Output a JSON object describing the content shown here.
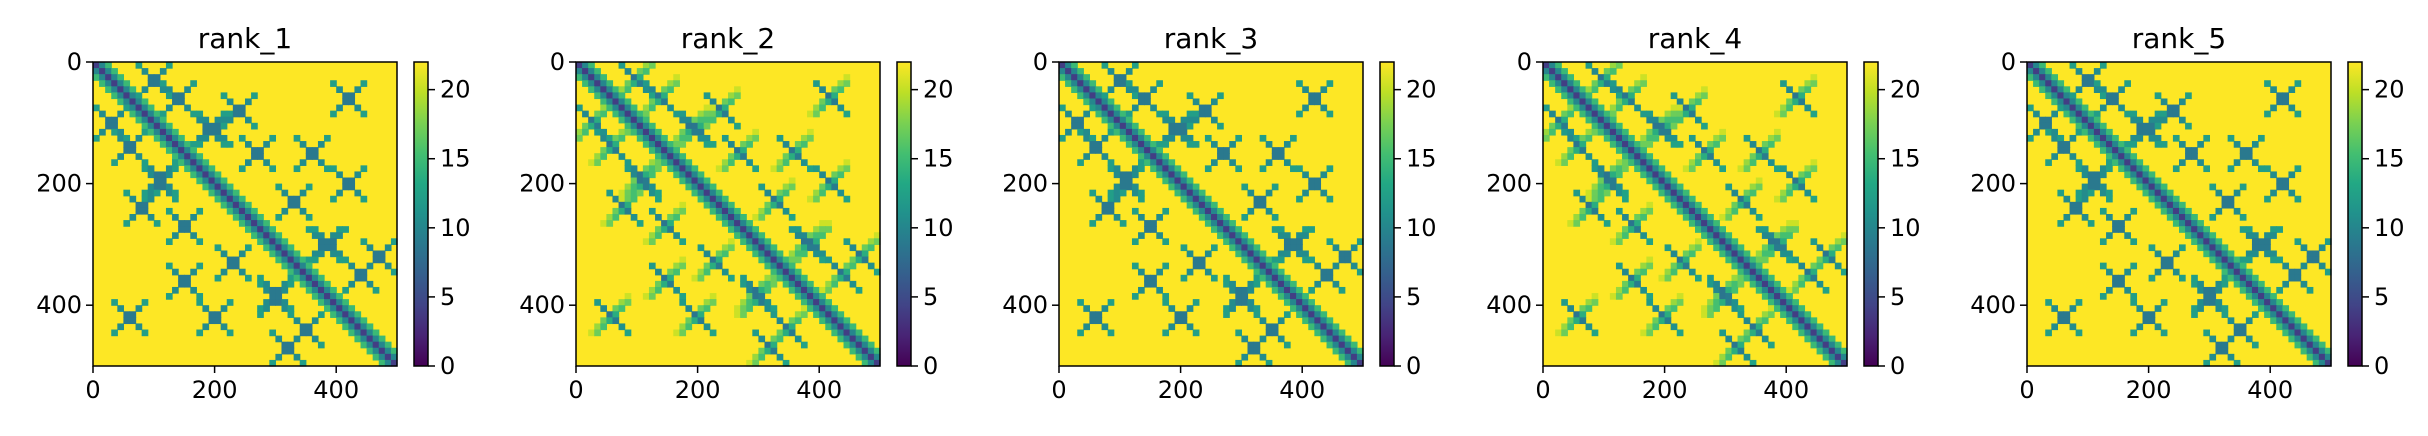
{
  "chart_data": {
    "type": "heatmap",
    "figure_title": "",
    "panels": [
      {
        "title": "rank_1"
      },
      {
        "title": "rank_2"
      },
      {
        "title": "rank_3"
      },
      {
        "title": "rank_4"
      },
      {
        "title": "rank_5"
      }
    ],
    "matrix_size": 500,
    "x_axis": {
      "range": [
        0,
        500
      ],
      "ticks": [
        0,
        200,
        400
      ],
      "label": ""
    },
    "y_axis": {
      "range": [
        500,
        0
      ],
      "inverted": true,
      "ticks": [
        0,
        200,
        400
      ],
      "label": ""
    },
    "colorbar": {
      "colormap": "viridis",
      "range": [
        0,
        22
      ],
      "ticks": [
        0,
        5,
        10,
        15,
        20
      ],
      "label": ""
    },
    "background_value": 22,
    "diagonal": {
      "value": 4,
      "width": 12
    },
    "pattern_note": "symmetric distance map: dark diagonal band, paired crossing motifs off-diagonal, mostly saturated yellow",
    "colors": {
      "viridis_0": "#440154",
      "viridis_25": "#3b528b",
      "viridis_50": "#21918c",
      "viridis_75": "#5ec962",
      "viridis_100": "#fde725"
    }
  }
}
